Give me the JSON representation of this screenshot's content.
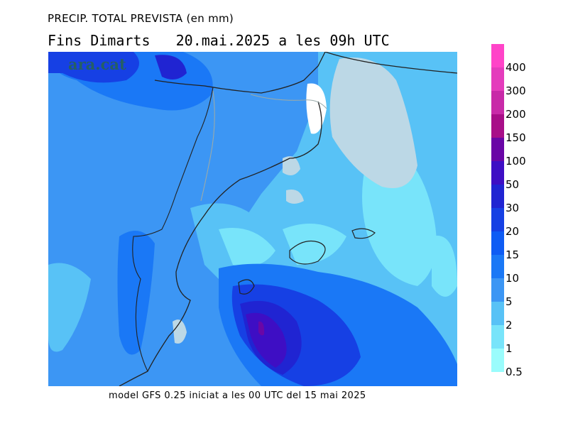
{
  "header": {
    "title": "PRECIP. TOTAL PREVISTA (en mm)",
    "subtitle": "Fins Dimarts   20.mai.2025 a les 09h UTC"
  },
  "footer": {
    "text": "model GFS 0.25 iniciat a les 00 UTC del 15 mai 2025"
  },
  "watermark": {
    "text": "ara.cat"
  },
  "legend": {
    "items": [
      {
        "label": "400",
        "color": "#ff44c8"
      },
      {
        "label": "300",
        "color": "#e43cbc"
      },
      {
        "label": "200",
        "color": "#c82aa8"
      },
      {
        "label": "150",
        "color": "#a80e88"
      },
      {
        "label": "100",
        "color": "#6a06a6"
      },
      {
        "label": "50",
        "color": "#3e0ec4"
      },
      {
        "label": "30",
        "color": "#2024d2"
      },
      {
        "label": "20",
        "color": "#1640e4"
      },
      {
        "label": "15",
        "color": "#0e5cf4"
      },
      {
        "label": "10",
        "color": "#1a78f6"
      },
      {
        "label": "5",
        "color": "#3c96f4"
      },
      {
        "label": "2",
        "color": "#58c2f6"
      },
      {
        "label": "1",
        "color": "#78e4fa"
      },
      {
        "label": "0.5",
        "color": "#9afcfc"
      }
    ]
  }
}
